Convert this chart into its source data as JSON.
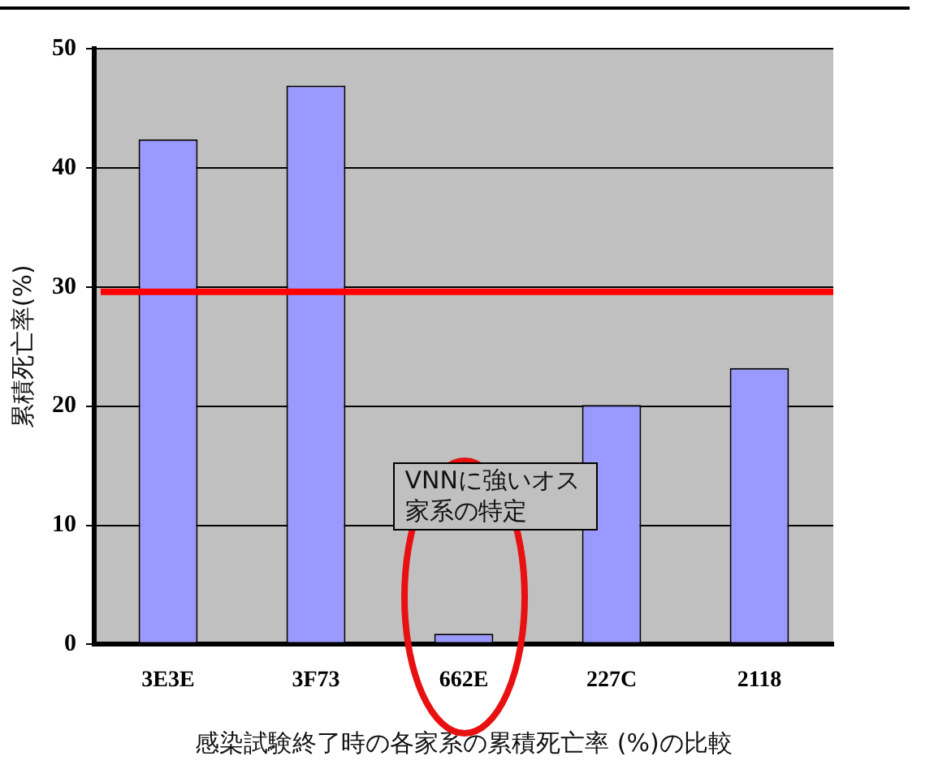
{
  "chart_data": {
    "type": "bar",
    "xlabel": "感染試験終了時の各家系の累積死亡率 (%)の比較",
    "ylabel": "累積死亡率(%)",
    "categories": [
      "3E3E",
      "3F73",
      "662E",
      "227C",
      "2118"
    ],
    "values": [
      42.4,
      46.9,
      0.9,
      20.1,
      23.2
    ],
    "color": "#9999ff",
    "ylim": [
      0,
      50
    ],
    "yticks": [
      0,
      10,
      20,
      30,
      40,
      50
    ],
    "grid": "y",
    "legend": false,
    "ref_lines": [
      {
        "axis": "y",
        "value": 29.6,
        "color": "#ff0000"
      }
    ],
    "annotations": [
      "VNNに強いオス家系の特定"
    ]
  }
}
